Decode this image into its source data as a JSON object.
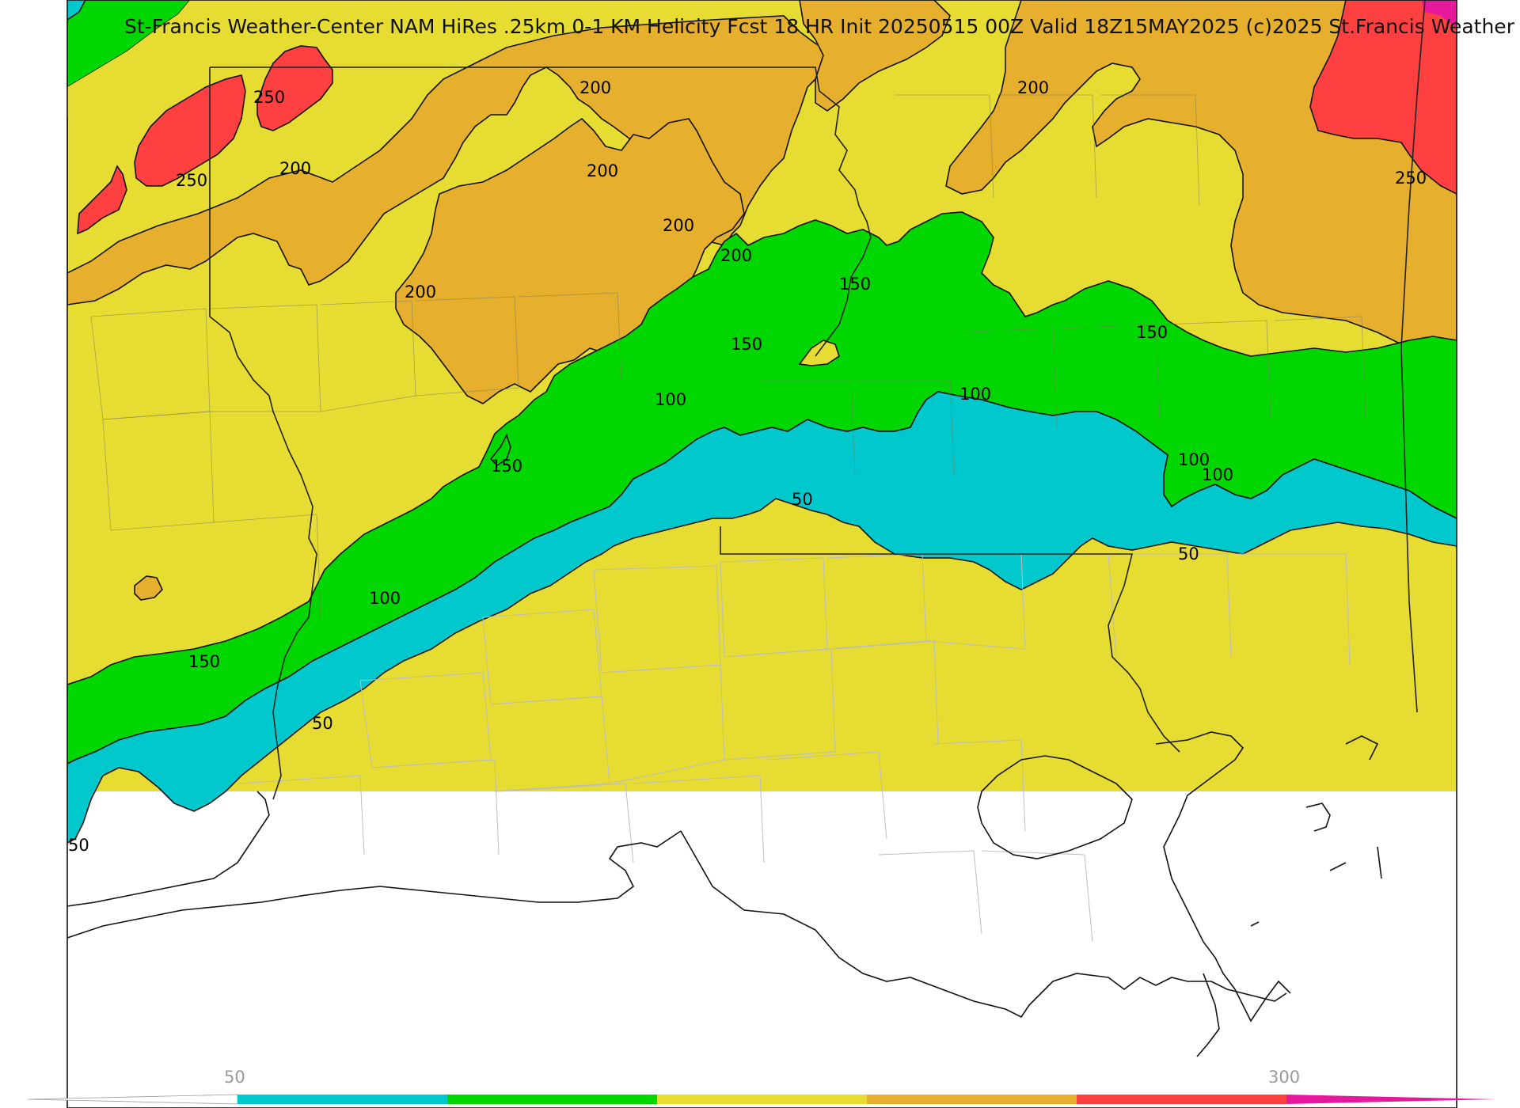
{
  "title": "St-Francis Weather-Center NAM HiRes .25km 0-1 KM Helicity Fcst 18 HR Init 20250515 00Z  Valid 18Z15MAY2025    (c)2025 St.Francis Weather",
  "colors": {
    "below_50": "#ffffff",
    "c50_100": "#00c8cd",
    "c100_150": "#00d700",
    "c150_200": "#e6dc32",
    "c200_250": "#e6af2d",
    "c250_300": "#ff4040",
    "c300_plus": "#e6189b"
  },
  "contour_labels": [
    {
      "text": "250"
    },
    {
      "text": "250"
    },
    {
      "text": "200"
    },
    {
      "text": "200"
    },
    {
      "text": "200"
    },
    {
      "text": "200"
    },
    {
      "text": "200"
    },
    {
      "text": "200"
    },
    {
      "text": "200"
    },
    {
      "text": "250"
    },
    {
      "text": "150"
    },
    {
      "text": "150"
    },
    {
      "text": "150"
    },
    {
      "text": "100"
    },
    {
      "text": "100"
    },
    {
      "text": "150"
    },
    {
      "text": "100"
    },
    {
      "text": "50"
    },
    {
      "text": "100"
    },
    {
      "text": "50"
    },
    {
      "text": "150"
    },
    {
      "text": "100"
    },
    {
      "text": "50"
    },
    {
      "text": "50"
    }
  ],
  "colorbar": {
    "min_label": "50",
    "max_label": "300"
  }
}
